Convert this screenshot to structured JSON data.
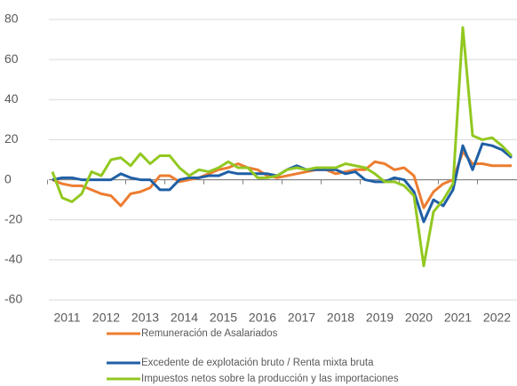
{
  "chart_data": {
    "type": "line",
    "categories": [
      "2011",
      null,
      null,
      null,
      "2012",
      null,
      null,
      null,
      "2013",
      null,
      null,
      null,
      "2014",
      null,
      null,
      null,
      "2015",
      null,
      null,
      null,
      "2016",
      null,
      null,
      null,
      "2017",
      null,
      null,
      null,
      "2018",
      null,
      null,
      null,
      "2019",
      null,
      null,
      null,
      "2020",
      null,
      null,
      null,
      "2021",
      null,
      null,
      null,
      "2022",
      null,
      null,
      null
    ],
    "series": [
      {
        "name": "Remuneración de Asalariados",
        "color": "#ed7d31",
        "values": [
          0,
          -2,
          -3,
          -3,
          -5,
          -7,
          -8,
          -13,
          -7,
          -6,
          -4,
          2,
          2,
          -1,
          0,
          1,
          3,
          5,
          6,
          8,
          6,
          5,
          2,
          1,
          2,
          3,
          4,
          5,
          5,
          3,
          4,
          5,
          5,
          9,
          8,
          5,
          6,
          2,
          -14,
          -6,
          -2,
          0,
          14,
          8,
          8,
          7,
          7,
          7
        ]
      },
      {
        "name": "Excedente de explotación bruto / Renta mixta bruta",
        "color": "#1f5fa5",
        "values": [
          0,
          1,
          1,
          0,
          0,
          0,
          0,
          3,
          1,
          0,
          0,
          -5,
          -5,
          0,
          1,
          1,
          2,
          2,
          4,
          3,
          3,
          3,
          3,
          2,
          5,
          7,
          5,
          5,
          5,
          5,
          3,
          4,
          0,
          -1,
          -1,
          1,
          0,
          -6,
          -21,
          -10,
          -13,
          -5,
          17,
          5,
          18,
          17,
          15,
          11
        ]
      },
      {
        "name": "Impuestos netos sobre la producción y las importaciones",
        "color": "#92c821",
        "values": [
          4,
          -9,
          -11,
          -7,
          4,
          2,
          10,
          11,
          7,
          13,
          8,
          12,
          12,
          6,
          2,
          5,
          4,
          6,
          9,
          6,
          6,
          1,
          1,
          2,
          5,
          6,
          5,
          6,
          6,
          6,
          8,
          7,
          6,
          3,
          -1,
          -1,
          -3,
          -8,
          -43,
          -16,
          -10,
          -2,
          76,
          22,
          20,
          21,
          17,
          12
        ]
      }
    ],
    "ylim": [
      -60,
      80
    ],
    "yticks": [
      -60,
      -40,
      -20,
      0,
      20,
      40,
      60,
      80
    ],
    "grid": true
  }
}
